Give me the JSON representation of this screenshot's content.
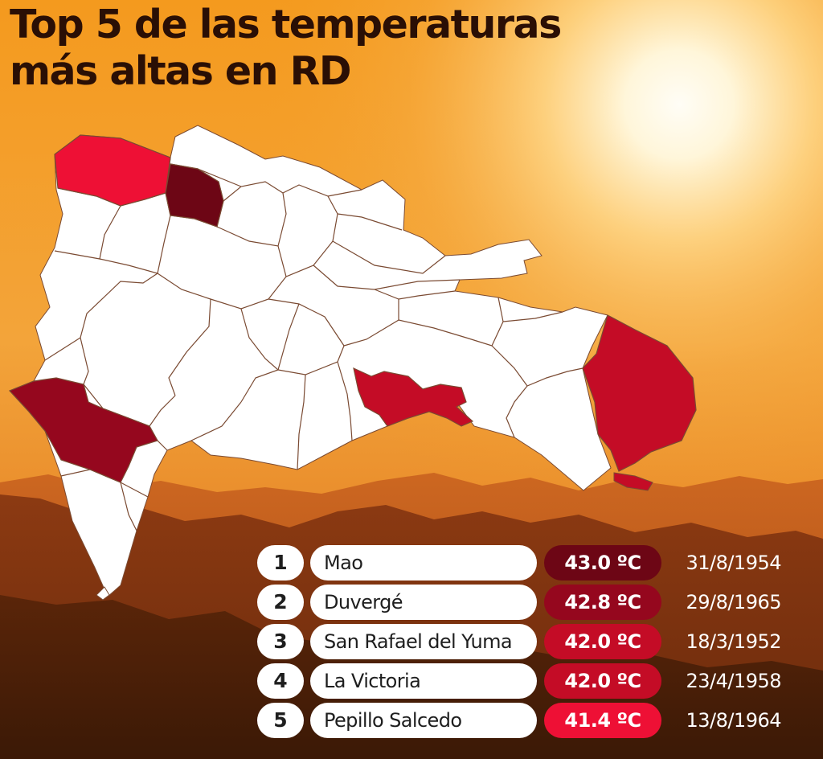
{
  "title": "Top 5 de las temperaturas\nmás altas en RD",
  "colors": {
    "rank_1": "#6d0615",
    "rank_2": "#95071e",
    "rank_3": "#c40c26",
    "rank_4": "#c40c26",
    "rank_5": "#ee1035",
    "province_default": "#ffffff",
    "province_border": "#7a4a32"
  },
  "ranking": [
    {
      "rank": "1",
      "place": "Mao",
      "temperature": "43.0 ºC",
      "date": "31/8/1954"
    },
    {
      "rank": "2",
      "place": "Duvergé",
      "temperature": "42.8 ºC",
      "date": "29/8/1965"
    },
    {
      "rank": "3",
      "place": "San Rafael del Yuma",
      "temperature": "42.0 ºC",
      "date": "18/3/1952"
    },
    {
      "rank": "4",
      "place": "La Victoria",
      "temperature": "42.0 ºC",
      "date": "23/4/1958"
    },
    {
      "rank": "5",
      "place": "Pepillo Salcedo",
      "temperature": "41.4 ºC",
      "date": "13/8/1964"
    }
  ]
}
